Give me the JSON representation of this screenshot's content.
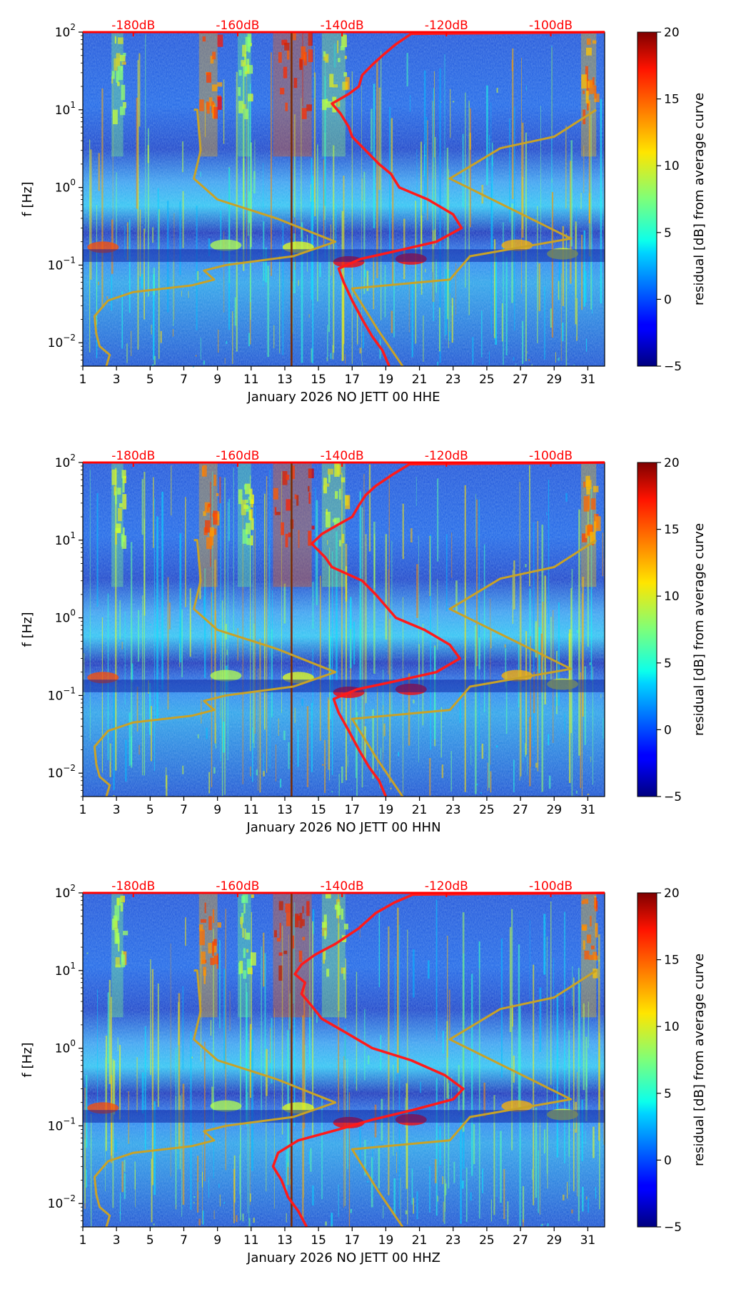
{
  "figure": {
    "colormap": "jet",
    "colors": {
      "noise_curves": "#ff1a1a",
      "model_curves": "#c9a227",
      "top_axis_text": "#ff0000",
      "midmonth_line": "#7a2a00"
    }
  },
  "chart_data": [
    {
      "type": "heatmap",
      "title": "",
      "xlabel": "January 2026 NO JETT 00 HHE",
      "ylabel": "f [Hz]",
      "x_ticks": [
        "1",
        "3",
        "5",
        "7",
        "9",
        "11",
        "13",
        "15",
        "17",
        "19",
        "21",
        "23",
        "25",
        "27",
        "29",
        "31"
      ],
      "x_range": [
        1,
        32
      ],
      "y_scale": "log",
      "y_range": [
        0.005,
        100
      ],
      "y_ticks": [
        {
          "base": "10",
          "exp": "−2"
        },
        {
          "base": "10",
          "exp": "−1"
        },
        {
          "base": "10",
          "exp": "0"
        },
        {
          "base": "10",
          "exp": "1"
        },
        {
          "base": "10",
          "exp": "2"
        }
      ],
      "top_axis_ticks": [
        "-180dB",
        "-160dB",
        "-140dB",
        "-120dB",
        "-100dB"
      ],
      "top_axis_positions": [
        4,
        10.2,
        16.4,
        22.6,
        28.8
      ],
      "colorbar": {
        "label": "residual [dB] from average curve",
        "ticks": [
          "−5",
          "0",
          "5",
          "10",
          "15",
          "20"
        ],
        "range": [
          -5,
          20
        ]
      },
      "midmonth_day": 13.4,
      "noise_curve": [
        [
          19.2,
          0.005
        ],
        [
          18.8,
          0.008
        ],
        [
          18.2,
          0.012
        ],
        [
          17.6,
          0.02
        ],
        [
          17.0,
          0.035
        ],
        [
          16.5,
          0.06
        ],
        [
          16.2,
          0.09
        ],
        [
          17.5,
          0.12
        ],
        [
          19.5,
          0.15
        ],
        [
          22.0,
          0.2
        ],
        [
          23.5,
          0.3
        ],
        [
          23.0,
          0.45
        ],
        [
          21.5,
          0.7
        ],
        [
          19.8,
          1.0
        ],
        [
          19.3,
          1.5
        ],
        [
          18.6,
          2.0
        ],
        [
          17.8,
          3.0
        ],
        [
          17.0,
          4.5
        ],
        [
          16.8,
          6.0
        ],
        [
          16.3,
          9.0
        ],
        [
          15.8,
          12.0
        ],
        [
          16.8,
          16.0
        ],
        [
          17.4,
          20.0
        ],
        [
          17.6,
          28.0
        ],
        [
          18.2,
          38.0
        ],
        [
          18.8,
          50.0
        ],
        [
          19.6,
          70.0
        ],
        [
          20.5,
          95.0
        ],
        [
          32,
          100
        ]
      ],
      "model_curve": [
        [
          2.4,
          0.005
        ],
        [
          2.6,
          0.007
        ],
        [
          2.0,
          0.009
        ],
        [
          1.8,
          0.013
        ],
        [
          1.7,
          0.022
        ],
        [
          2.5,
          0.035
        ],
        [
          4.0,
          0.045
        ],
        [
          7.5,
          0.055
        ],
        [
          8.8,
          0.065
        ],
        [
          8.2,
          0.085
        ],
        [
          9.5,
          0.1
        ],
        [
          13.5,
          0.13
        ],
        [
          16.0,
          0.2
        ],
        [
          12.5,
          0.4
        ],
        [
          9.0,
          0.7
        ],
        [
          7.6,
          1.3
        ],
        [
          8.0,
          3.0
        ],
        [
          7.8,
          10.0
        ],
        [
          7.6,
          10.0
        ]
      ],
      "model_curve_b": [
        [
          20.0,
          0.005
        ],
        [
          18.5,
          0.015
        ],
        [
          17.0,
          0.05
        ],
        [
          22.8,
          0.065
        ],
        [
          24.0,
          0.13
        ],
        [
          30.0,
          0.22
        ],
        [
          22.8,
          1.3
        ],
        [
          25.8,
          3.2
        ],
        [
          29.0,
          4.5
        ],
        [
          31.5,
          10.0
        ]
      ]
    },
    {
      "type": "heatmap",
      "title": "",
      "xlabel": "January 2026 NO JETT 00 HHN",
      "ylabel": "f [Hz]",
      "x_ticks": [
        "1",
        "3",
        "5",
        "7",
        "9",
        "11",
        "13",
        "15",
        "17",
        "19",
        "21",
        "23",
        "25",
        "27",
        "29",
        "31"
      ],
      "x_range": [
        1,
        32
      ],
      "y_scale": "log",
      "y_range": [
        0.005,
        100
      ],
      "y_ticks": [
        {
          "base": "10",
          "exp": "−2"
        },
        {
          "base": "10",
          "exp": "−1"
        },
        {
          "base": "10",
          "exp": "0"
        },
        {
          "base": "10",
          "exp": "1"
        },
        {
          "base": "10",
          "exp": "2"
        }
      ],
      "top_axis_ticks": [
        "-180dB",
        "-160dB",
        "-140dB",
        "-120dB",
        "-100dB"
      ],
      "top_axis_positions": [
        4,
        10.2,
        16.4,
        22.6,
        28.8
      ],
      "colorbar": {
        "label": "residual [dB] from average curve",
        "ticks": [
          "−5",
          "0",
          "5",
          "10",
          "15",
          "20"
        ],
        "range": [
          -5,
          20
        ]
      },
      "midmonth_day": 13.4,
      "noise_curve": [
        [
          19.0,
          0.005
        ],
        [
          18.6,
          0.008
        ],
        [
          18.0,
          0.012
        ],
        [
          17.4,
          0.02
        ],
        [
          16.8,
          0.035
        ],
        [
          16.2,
          0.06
        ],
        [
          15.9,
          0.09
        ],
        [
          17.3,
          0.12
        ],
        [
          19.4,
          0.15
        ],
        [
          22.0,
          0.2
        ],
        [
          23.4,
          0.3
        ],
        [
          22.8,
          0.45
        ],
        [
          21.3,
          0.7
        ],
        [
          19.6,
          1.0
        ],
        [
          18.9,
          1.5
        ],
        [
          18.4,
          2.0
        ],
        [
          17.6,
          3.0
        ],
        [
          15.8,
          4.5
        ],
        [
          15.4,
          6.0
        ],
        [
          14.6,
          9.0
        ],
        [
          15.2,
          12.0
        ],
        [
          16.2,
          16.0
        ],
        [
          17.0,
          20.0
        ],
        [
          17.4,
          28.0
        ],
        [
          17.8,
          38.0
        ],
        [
          18.4,
          50.0
        ],
        [
          19.4,
          70.0
        ],
        [
          20.4,
          95.0
        ],
        [
          32,
          100
        ]
      ],
      "model_curve": [
        [
          2.4,
          0.005
        ],
        [
          2.6,
          0.007
        ],
        [
          2.0,
          0.009
        ],
        [
          1.8,
          0.013
        ],
        [
          1.7,
          0.022
        ],
        [
          2.5,
          0.035
        ],
        [
          4.0,
          0.045
        ],
        [
          7.5,
          0.055
        ],
        [
          8.8,
          0.065
        ],
        [
          8.2,
          0.085
        ],
        [
          9.5,
          0.1
        ],
        [
          13.5,
          0.13
        ],
        [
          16.0,
          0.2
        ],
        [
          12.5,
          0.4
        ],
        [
          9.0,
          0.7
        ],
        [
          7.6,
          1.3
        ],
        [
          8.0,
          3.0
        ],
        [
          7.8,
          10.0
        ],
        [
          7.6,
          10.0
        ]
      ],
      "model_curve_b": [
        [
          20.0,
          0.005
        ],
        [
          18.5,
          0.015
        ],
        [
          17.0,
          0.05
        ],
        [
          22.8,
          0.065
        ],
        [
          24.0,
          0.13
        ],
        [
          30.0,
          0.22
        ],
        [
          22.8,
          1.3
        ],
        [
          25.8,
          3.2
        ],
        [
          29.0,
          4.5
        ],
        [
          31.5,
          10.0
        ]
      ]
    },
    {
      "type": "heatmap",
      "title": "",
      "xlabel": "January 2026 NO JETT 00 HHZ",
      "ylabel": "f [Hz]",
      "x_ticks": [
        "1",
        "3",
        "5",
        "7",
        "9",
        "11",
        "13",
        "15",
        "17",
        "19",
        "21",
        "23",
        "25",
        "27",
        "29",
        "31"
      ],
      "x_range": [
        1,
        32
      ],
      "y_scale": "log",
      "y_range": [
        0.005,
        100
      ],
      "y_ticks": [
        {
          "base": "10",
          "exp": "−2"
        },
        {
          "base": "10",
          "exp": "−1"
        },
        {
          "base": "10",
          "exp": "0"
        },
        {
          "base": "10",
          "exp": "1"
        },
        {
          "base": "10",
          "exp": "2"
        }
      ],
      "top_axis_ticks": [
        "-180dB",
        "-160dB",
        "-140dB",
        "-120dB",
        "-100dB"
      ],
      "top_axis_positions": [
        4,
        10.2,
        16.4,
        22.6,
        28.8
      ],
      "colorbar": {
        "label": "residual [dB] from average curve",
        "ticks": [
          "−5",
          "0",
          "5",
          "10",
          "15",
          "20"
        ],
        "range": [
          -5,
          20
        ]
      },
      "midmonth_day": 13.4,
      "noise_curve": [
        [
          14.3,
          0.005
        ],
        [
          13.8,
          0.008
        ],
        [
          13.2,
          0.012
        ],
        [
          12.8,
          0.02
        ],
        [
          12.3,
          0.03
        ],
        [
          12.6,
          0.045
        ],
        [
          13.8,
          0.065
        ],
        [
          16.2,
          0.09
        ],
        [
          18.2,
          0.12
        ],
        [
          20.6,
          0.16
        ],
        [
          23.0,
          0.22
        ],
        [
          23.6,
          0.3
        ],
        [
          22.5,
          0.45
        ],
        [
          20.5,
          0.7
        ],
        [
          18.2,
          1.0
        ],
        [
          16.6,
          1.6
        ],
        [
          15.2,
          2.4
        ],
        [
          14.6,
          3.5
        ],
        [
          14.0,
          5.0
        ],
        [
          14.2,
          7.0
        ],
        [
          13.6,
          9.0
        ],
        [
          14.0,
          12.0
        ],
        [
          14.8,
          16.0
        ],
        [
          16.0,
          22.0
        ],
        [
          17.4,
          35.0
        ],
        [
          18.4,
          55.0
        ],
        [
          19.5,
          75.0
        ],
        [
          20.6,
          95.0
        ],
        [
          32,
          100
        ]
      ],
      "model_curve": [
        [
          2.4,
          0.005
        ],
        [
          2.6,
          0.007
        ],
        [
          2.0,
          0.009
        ],
        [
          1.8,
          0.013
        ],
        [
          1.7,
          0.022
        ],
        [
          2.5,
          0.035
        ],
        [
          4.0,
          0.045
        ],
        [
          7.5,
          0.055
        ],
        [
          8.8,
          0.065
        ],
        [
          8.2,
          0.085
        ],
        [
          9.5,
          0.1
        ],
        [
          13.5,
          0.13
        ],
        [
          16.0,
          0.2
        ],
        [
          12.5,
          0.4
        ],
        [
          9.0,
          0.7
        ],
        [
          7.6,
          1.3
        ],
        [
          8.0,
          3.0
        ],
        [
          7.8,
          10.0
        ],
        [
          7.6,
          10.0
        ]
      ],
      "model_curve_b": [
        [
          20.0,
          0.005
        ],
        [
          18.5,
          0.015
        ],
        [
          17.0,
          0.05
        ],
        [
          22.8,
          0.065
        ],
        [
          24.0,
          0.13
        ],
        [
          30.0,
          0.22
        ],
        [
          22.8,
          1.3
        ],
        [
          25.8,
          3.2
        ],
        [
          29.0,
          4.5
        ],
        [
          31.5,
          10.0
        ]
      ]
    }
  ]
}
